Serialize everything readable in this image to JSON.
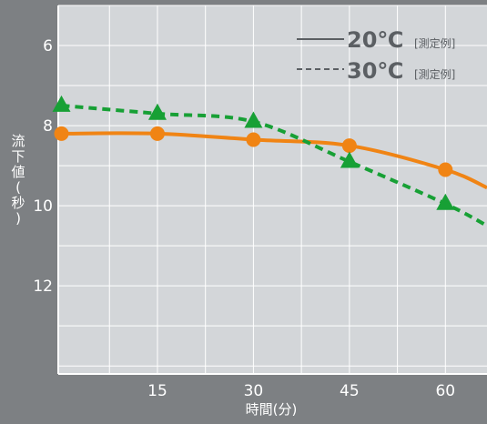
{
  "chart_data": {
    "type": "line",
    "xlabel": "時間(分)",
    "ylabel": "流下値(秒)",
    "x_ticks": [
      15,
      30,
      45,
      60
    ],
    "y_ticks": [
      6,
      8,
      10,
      12
    ],
    "xlim": [
      -0.5,
      66.5
    ],
    "ylim": [
      5,
      14.2
    ],
    "y_inverted": true,
    "grid": true,
    "legend": "top-right",
    "colors": {
      "series_20": "#f08414",
      "series_30": "#17a035",
      "background": "#d3d6d9",
      "grid": "#ffffff"
    },
    "series": [
      {
        "name": "20℃",
        "name_sub": "[測定例]",
        "line_style": "solid",
        "marker": "circle",
        "color": "#f08414",
        "x": [
          0,
          15,
          30,
          45,
          60
        ],
        "y": [
          8.2,
          8.2,
          8.35,
          8.5,
          9.1
        ],
        "curve_end": {
          "x": 66.5,
          "y": 9.55
        }
      },
      {
        "name": "30℃",
        "name_sub": "[測定例]",
        "line_style": "dashed",
        "marker": "triangle",
        "color": "#17a035",
        "x": [
          0,
          15,
          30,
          45,
          60
        ],
        "y": [
          7.5,
          7.7,
          7.9,
          8.9,
          9.95
        ],
        "curve_end": {
          "x": 66.5,
          "y": 10.5
        }
      }
    ]
  }
}
